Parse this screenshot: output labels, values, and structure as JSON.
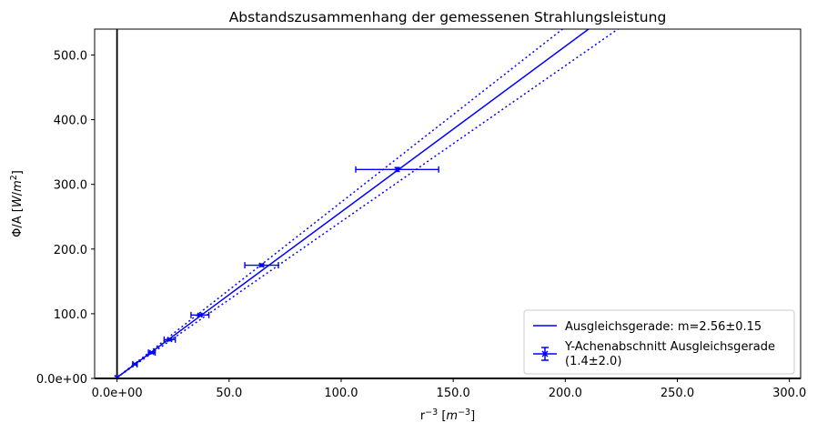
{
  "chart_data": {
    "type": "scatter",
    "title": "Abstandszusammenhang der gemessenen Strahlungsleistung",
    "xlabel": "r^{-3} [m^{-3}]",
    "ylabel": "Φ/A [W/m^{2}]",
    "xlim": [
      -10,
      305
    ],
    "ylim": [
      0,
      540
    ],
    "xticks": [
      0,
      50,
      100,
      150,
      200,
      250,
      300
    ],
    "xtick_labels": [
      "0.0e+00",
      "50.0",
      "100.0",
      "150.0",
      "200.0",
      "250.0",
      "300.0"
    ],
    "yticks": [
      0,
      100,
      200,
      300,
      400,
      500
    ],
    "ytick_labels": [
      "0.0e+00",
      "100.0",
      "200.0",
      "300.0",
      "400.0",
      "500.0"
    ],
    "grid": false,
    "legend_position": "lower-right",
    "color": "#0000ff",
    "zero_line": {
      "x": 0,
      "color": "#000000"
    },
    "fit_line": {
      "label": "Ausgleichsgerade: m=2.56±0.15",
      "slope": 2.56,
      "intercept": 1.4,
      "x_range": [
        0,
        211
      ]
    },
    "confidence_lines": [
      {
        "slope": 2.71,
        "intercept": 1.4,
        "x_range": [
          0,
          199
        ]
      },
      {
        "slope": 2.41,
        "intercept": 1.4,
        "x_range": [
          0,
          224
        ]
      }
    ],
    "data_series": {
      "label": "Y-Achenabschnitt Ausgleichsgerade",
      "label_line2": "(1.4±2.0)",
      "points": [
        {
          "x": 0,
          "y": 1.4,
          "xerr": 0,
          "yerr": 2.0
        },
        {
          "x": 8,
          "y": 22,
          "xerr": 1,
          "yerr": 1
        },
        {
          "x": 15.5,
          "y": 40,
          "xerr": 1.5,
          "yerr": 1
        },
        {
          "x": 23.5,
          "y": 60,
          "xerr": 2.5,
          "yerr": 1
        },
        {
          "x": 37,
          "y": 98,
          "xerr": 4,
          "yerr": 1.5
        },
        {
          "x": 64.5,
          "y": 175,
          "xerr": 7.5,
          "yerr": 2
        },
        {
          "x": 125,
          "y": 323,
          "xerr": 18.5,
          "yerr": 3
        }
      ]
    }
  }
}
